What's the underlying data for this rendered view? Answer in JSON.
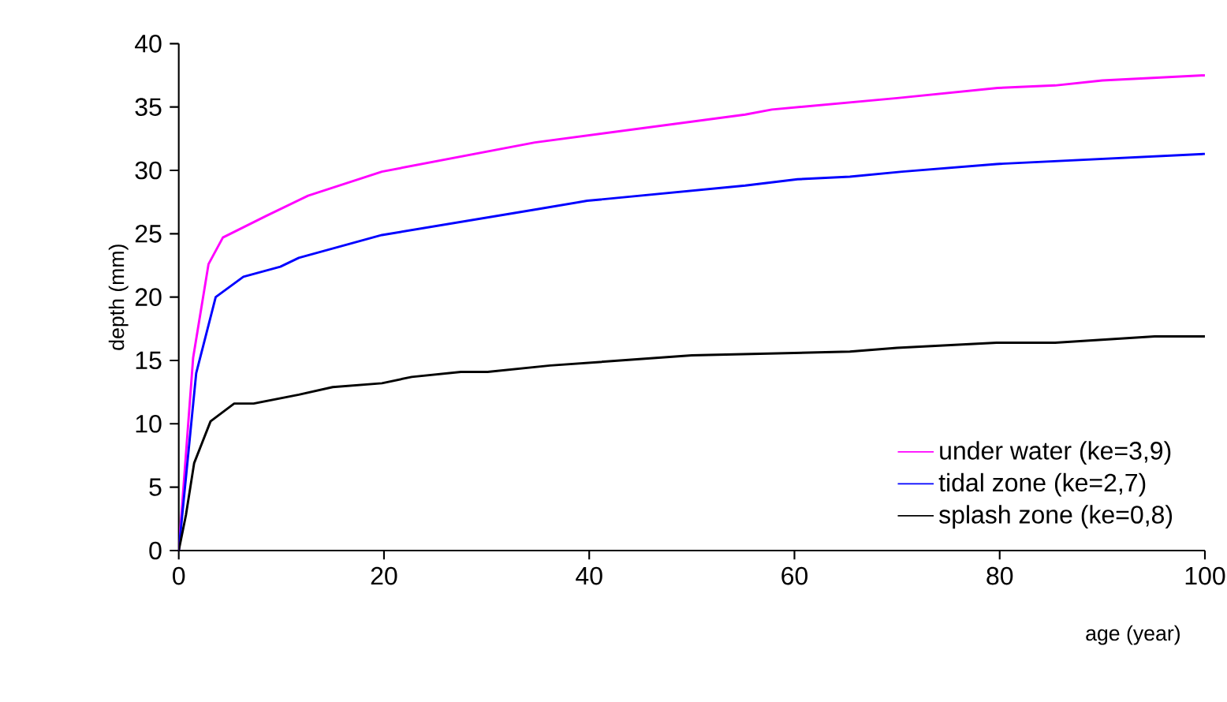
{
  "chart_data": {
    "type": "line",
    "xlabel": "age (year)",
    "ylabel": "depth (mm)",
    "xlim": [
      0,
      100
    ],
    "xticks": [
      0,
      20,
      40,
      60,
      80,
      100
    ],
    "ylim": [
      0,
      40
    ],
    "yticks": [
      0,
      5,
      10,
      15,
      20,
      25,
      30,
      35,
      40
    ],
    "grid": false,
    "legend": "bottom right",
    "marker": "none",
    "line_style": "solid",
    "series": [
      {
        "name": "under water (ke=3,9)",
        "color": "#ff00ff",
        "x": [
          0,
          1.4,
          2.9,
          4.3,
          8.5,
          12.6,
          19.8,
          34.7,
          55.2,
          57.8,
          70,
          79.8,
          85.4,
          90,
          100
        ],
        "values": [
          0,
          15.2,
          22.6,
          24.7,
          26.4,
          28.0,
          29.9,
          32.2,
          34.4,
          34.8,
          35.7,
          36.5,
          36.7,
          37.1,
          37.5
        ]
      },
      {
        "name": "tidal zone (ke=2,7)",
        "color": "#0000ff",
        "x": [
          0,
          1.7,
          3.6,
          6.3,
          9.9,
          11.7,
          19.8,
          34.7,
          39.8,
          55.2,
          60.3,
          65.4,
          70.5,
          79.7,
          100
        ],
        "values": [
          0,
          14.0,
          20.0,
          21.6,
          22.4,
          23.1,
          24.9,
          26.9,
          27.6,
          28.8,
          29.3,
          29.5,
          29.9,
          30.5,
          31.3
        ]
      },
      {
        "name": "splash zone (ke=0,8)",
        "color": "#000000",
        "x": [
          0,
          0.7,
          1.5,
          3.1,
          5.4,
          7.3,
          11.7,
          15,
          19.8,
          22.7,
          27.5,
          30.1,
          36.2,
          50,
          65.4,
          70,
          79.7,
          85.4,
          95.1,
          100
        ],
        "values": [
          0,
          2.8,
          6.9,
          10.2,
          11.6,
          11.6,
          12.3,
          12.9,
          13.2,
          13.7,
          14.1,
          14.1,
          14.6,
          15.4,
          15.7,
          16.0,
          16.4,
          16.4,
          16.9,
          16.9
        ]
      }
    ]
  }
}
